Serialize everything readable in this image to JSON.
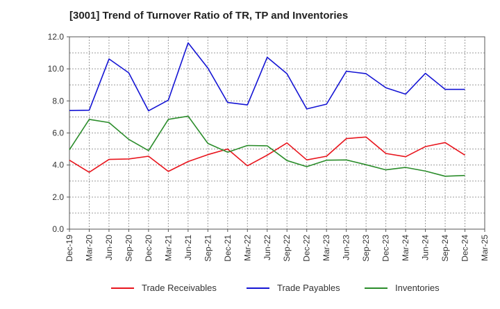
{
  "chart_data": {
    "type": "line",
    "title": "[3001]  Trend of Turnover Ratio of TR, TP and Inventories",
    "xlabel": "",
    "ylabel": "",
    "ylim": [
      0,
      12
    ],
    "yticks": [
      "0.0",
      "2.0",
      "4.0",
      "6.0",
      "8.0",
      "10.0",
      "12.0"
    ],
    "x_tick_labels": [
      "Dec-19",
      "Mar-20",
      "Jun-20",
      "Sep-20",
      "Dec-20",
      "Mar-21",
      "Jun-21",
      "Sep-21",
      "Dec-21",
      "Mar-22",
      "Jun-22",
      "Sep-22",
      "Dec-22",
      "Mar-23",
      "Jun-23",
      "Sep-23",
      "Dec-23",
      "Mar-24",
      "Jun-24",
      "Sep-24",
      "Dec-24",
      "Mar-25"
    ],
    "x": [
      "Dec-19",
      "Mar-20",
      "Jun-20",
      "Sep-20",
      "Dec-20",
      "Mar-21",
      "Jun-21",
      "Sep-21",
      "Dec-21",
      "Mar-22",
      "Jun-22",
      "Sep-22",
      "Dec-22",
      "Mar-23",
      "Jun-23",
      "Sep-23",
      "Dec-23",
      "Mar-24",
      "Jun-24",
      "Sep-24",
      "Dec-24"
    ],
    "grid": true,
    "legend_position": "bottom",
    "series": [
      {
        "name": "Trade Receivables",
        "color": "#e8141c",
        "values": [
          4.3,
          3.55,
          4.35,
          4.38,
          4.55,
          3.6,
          4.22,
          4.65,
          5.0,
          3.95,
          4.62,
          5.38,
          4.32,
          4.55,
          5.65,
          5.75,
          4.72,
          4.52,
          5.15,
          5.4,
          4.62
        ]
      },
      {
        "name": "Trade Payables",
        "color": "#1414d4",
        "values": [
          7.4,
          7.42,
          10.62,
          9.75,
          7.38,
          8.05,
          11.62,
          10.05,
          7.9,
          7.75,
          10.72,
          9.7,
          7.5,
          7.8,
          9.85,
          9.7,
          8.82,
          8.42,
          9.72,
          8.72,
          8.72
        ]
      },
      {
        "name": "Inventories",
        "color": "#2a8c2a",
        "values": [
          4.95,
          6.85,
          6.65,
          5.6,
          4.9,
          6.85,
          7.05,
          5.35,
          4.8,
          5.22,
          5.2,
          4.28,
          3.9,
          4.3,
          4.32,
          4.02,
          3.7,
          3.85,
          3.62,
          3.3,
          3.35
        ]
      }
    ]
  }
}
